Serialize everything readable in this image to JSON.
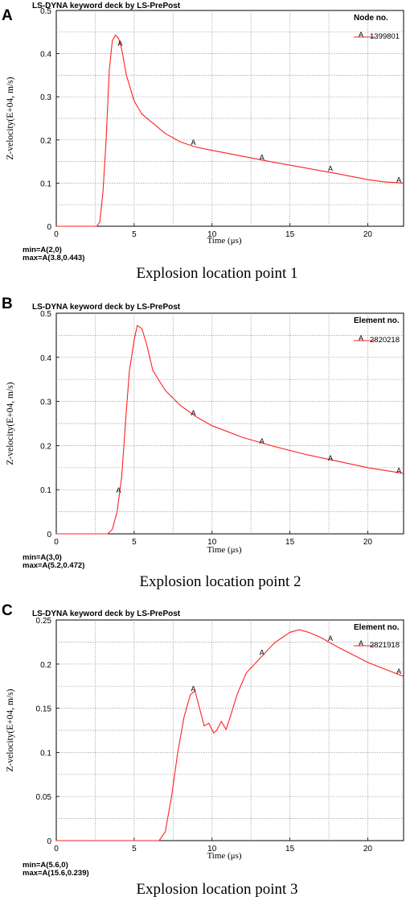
{
  "panels": [
    {
      "letter": "A",
      "header": "LS-DYNA keyword deck by LS-PrePost",
      "legend_title": "Node no.",
      "legend_marker": "A",
      "legend_id": "1399801",
      "minmax_min": "min=A(2,0)",
      "minmax_max": "max=A(3.8,0.443)",
      "xlabel": "Time (μs)",
      "ylabel": "Z-velocity(E+04, m/s)",
      "caption": "Explosion location point 1"
    },
    {
      "letter": "B",
      "header": "LS-DYNA keyword deck by LS-PrePost",
      "legend_title": "Element no.",
      "legend_marker": "A",
      "legend_id": "2820218",
      "minmax_min": "min=A(3,0)",
      "minmax_max": "max=A(5.2,0.472)",
      "xlabel": "Time (μs)",
      "ylabel": "Z-velocity(E+04, m/s)",
      "caption": "Explosion location point 2"
    },
    {
      "letter": "C",
      "header": "LS-DYNA keyword deck by LS-PrePost",
      "legend_title": "Element no.",
      "legend_marker": "A",
      "legend_id": "2821918",
      "minmax_min": "min=A(5.6,0)",
      "minmax_max": "max=A(15.6,0.239)",
      "xlabel": "Time (μs)",
      "ylabel": "Z-velocity(E+04, m/s)",
      "caption": "Explosion location point 3"
    }
  ],
  "colors": {
    "curve": "#ff2020",
    "grid": "#9a9a9a",
    "axis": "#000000"
  },
  "chart_data": [
    {
      "type": "line",
      "xlabel": "Time (μs)",
      "ylabel": "Z-velocity(E+04, m/s)",
      "xlim": [
        0,
        22.3
      ],
      "ylim": [
        0,
        0.5
      ],
      "xticks": [
        0,
        5,
        10,
        15,
        20
      ],
      "yticks": [
        0,
        0.1,
        0.2,
        0.3,
        0.4,
        0.5
      ],
      "grid": true,
      "legend_position": "top-right",
      "series": [
        {
          "name": "1399801",
          "x": [
            0,
            2.6,
            2.8,
            3.0,
            3.2,
            3.4,
            3.6,
            3.8,
            4.0,
            4.2,
            4.5,
            5.0,
            5.5,
            6.0,
            7.0,
            8.0,
            9.0,
            10.0,
            12.0,
            14.0,
            16.0,
            18.0,
            20.0,
            21.0,
            22.3
          ],
          "y": [
            0,
            0,
            0.01,
            0.08,
            0.2,
            0.36,
            0.43,
            0.443,
            0.435,
            0.41,
            0.35,
            0.29,
            0.26,
            0.245,
            0.215,
            0.195,
            0.183,
            0.176,
            0.162,
            0.148,
            0.135,
            0.122,
            0.108,
            0.103,
            0.1
          ]
        }
      ],
      "markers": [
        {
          "label": "A",
          "x": 4.1,
          "y": 0.42
        },
        {
          "label": "A",
          "x": 8.8,
          "y": 0.19
        },
        {
          "label": "A",
          "x": 13.2,
          "y": 0.156
        },
        {
          "label": "A",
          "x": 17.6,
          "y": 0.13
        },
        {
          "label": "A",
          "x": 22.0,
          "y": 0.104
        }
      ]
    },
    {
      "type": "line",
      "xlabel": "Time (μs)",
      "ylabel": "Z-velocity(E+04, m/s)",
      "xlim": [
        0,
        22.3
      ],
      "ylim": [
        0,
        0.5
      ],
      "xticks": [
        0,
        5,
        10,
        15,
        20
      ],
      "yticks": [
        0,
        0.1,
        0.2,
        0.3,
        0.4,
        0.5
      ],
      "grid": true,
      "legend_position": "top-right",
      "series": [
        {
          "name": "2820218",
          "x": [
            0,
            3.3,
            3.6,
            3.9,
            4.2,
            4.5,
            4.7,
            5.0,
            5.2,
            5.5,
            5.8,
            6.2,
            7.0,
            8.0,
            9.0,
            10.0,
            12.0,
            14.0,
            16.0,
            18.0,
            20.0,
            22.3
          ],
          "y": [
            0,
            0,
            0.01,
            0.05,
            0.13,
            0.28,
            0.37,
            0.44,
            0.472,
            0.465,
            0.43,
            0.37,
            0.325,
            0.29,
            0.265,
            0.245,
            0.218,
            0.198,
            0.18,
            0.165,
            0.15,
            0.137
          ]
        }
      ],
      "markers": [
        {
          "label": "A",
          "x": 4.0,
          "y": 0.095
        },
        {
          "label": "A",
          "x": 8.8,
          "y": 0.27
        },
        {
          "label": "A",
          "x": 13.2,
          "y": 0.206
        },
        {
          "label": "A",
          "x": 17.6,
          "y": 0.168
        },
        {
          "label": "A",
          "x": 22.0,
          "y": 0.14
        }
      ]
    },
    {
      "type": "line",
      "xlabel": "Time (μs)",
      "ylabel": "Z-velocity(E+04, m/s)",
      "xlim": [
        0,
        22.3
      ],
      "ylim": [
        0,
        0.25
      ],
      "xticks": [
        0,
        5,
        10,
        15,
        20
      ],
      "yticks": [
        0,
        0.05,
        0.1,
        0.15,
        0.2,
        0.25
      ],
      "grid": true,
      "legend_position": "top-right",
      "series": [
        {
          "name": "2821918",
          "x": [
            0,
            5.6,
            6.6,
            7.0,
            7.4,
            7.8,
            8.2,
            8.6,
            8.9,
            9.2,
            9.5,
            9.8,
            10.1,
            10.3,
            10.6,
            10.9,
            11.2,
            11.6,
            12.2,
            13.0,
            14.0,
            15.0,
            15.6,
            16.2,
            17.0,
            18.0,
            19.0,
            20.0,
            21.0,
            22.3
          ],
          "y": [
            0,
            0,
            0.0,
            0.01,
            0.05,
            0.1,
            0.14,
            0.165,
            0.17,
            0.15,
            0.13,
            0.133,
            0.122,
            0.125,
            0.135,
            0.126,
            0.142,
            0.165,
            0.19,
            0.205,
            0.224,
            0.236,
            0.239,
            0.236,
            0.23,
            0.22,
            0.211,
            0.202,
            0.195,
            0.186
          ]
        }
      ],
      "markers": [
        {
          "label": "A",
          "x": 8.8,
          "y": 0.17
        },
        {
          "label": "A",
          "x": 13.2,
          "y": 0.211
        },
        {
          "label": "A",
          "x": 17.6,
          "y": 0.227
        },
        {
          "label": "A",
          "x": 22.0,
          "y": 0.19
        }
      ]
    }
  ]
}
